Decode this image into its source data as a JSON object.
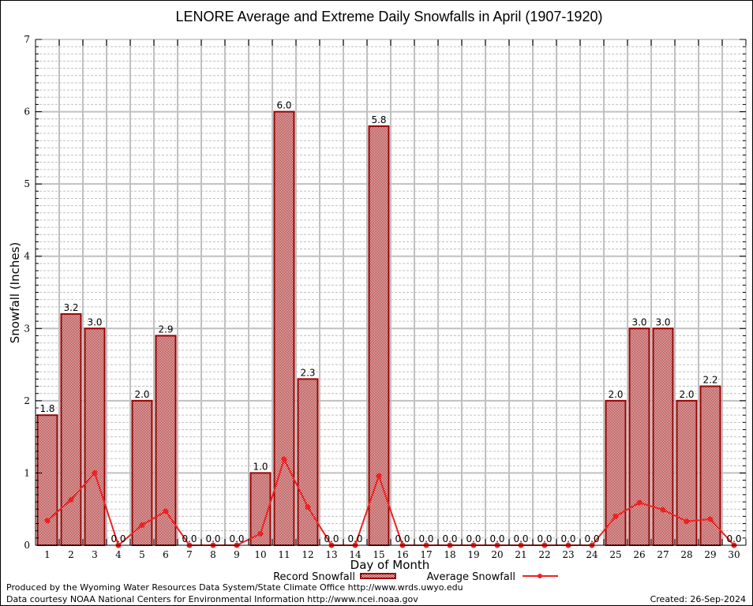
{
  "chart_data": {
    "type": "bar",
    "title": "LENORE Average and Extreme Daily Snowfalls in April (1907-1920)",
    "xlabel": "Day of Month",
    "ylabel": "Snowfall (Inches)",
    "ylim": [
      0,
      7
    ],
    "yticks": [
      "0",
      "1",
      "2",
      "3",
      "4",
      "5",
      "6",
      "7"
    ],
    "grid": true,
    "legend_position": "bottom-center",
    "categories": [
      "1",
      "2",
      "3",
      "4",
      "5",
      "6",
      "7",
      "8",
      "9",
      "10",
      "11",
      "12",
      "13",
      "14",
      "15",
      "16",
      "17",
      "18",
      "19",
      "20",
      "21",
      "22",
      "23",
      "24",
      "25",
      "26",
      "27",
      "28",
      "29",
      "30"
    ],
    "series": [
      {
        "name": "Record Snowfall",
        "type": "bar",
        "color": "#990000",
        "values": [
          1.8,
          3.2,
          3.0,
          0.0,
          2.0,
          2.9,
          0.0,
          0.0,
          0.0,
          1.0,
          6.0,
          2.3,
          0.0,
          0.0,
          5.8,
          0.0,
          0.0,
          0.0,
          0.0,
          0.0,
          0.0,
          0.0,
          0.0,
          0.0,
          2.0,
          3.0,
          3.0,
          2.0,
          2.2,
          0.0
        ],
        "labels": [
          "1.8",
          "3.2",
          "3.0",
          "0.0",
          "2.0",
          "2.9",
          "0.0",
          "0.0",
          "0.0",
          "1.0",
          "6.0",
          "2.3",
          "0.0",
          "0.0",
          "5.8",
          "0.0",
          "0.0",
          "0.0",
          "0.0",
          "0.0",
          "0.0",
          "0.0",
          "0.0",
          "0.0",
          "2.0",
          "3.0",
          "3.0",
          "2.0",
          "2.2",
          "0.0"
        ]
      },
      {
        "name": "Average Snowfall",
        "type": "line",
        "color": "#ee2222",
        "values": [
          0.34,
          0.63,
          1.0,
          0.0,
          0.28,
          0.47,
          0.0,
          0.0,
          0.0,
          0.16,
          1.19,
          0.53,
          0.0,
          0.0,
          0.96,
          0.0,
          0.0,
          0.0,
          0.0,
          0.0,
          0.0,
          0.0,
          0.0,
          0.0,
          0.4,
          0.59,
          0.49,
          0.33,
          0.36,
          0.0
        ]
      }
    ]
  },
  "footer": {
    "produced_by": "Produced by the Wyoming Water Resources Data System/State Climate Office http://www.wrds.uwyo.edu",
    "data_courtesy": "Data courtesy NOAA National Centers for Environmental Information http://www.ncei.noaa.gov",
    "created": "Created: 26-Sep-2024"
  },
  "colors": {
    "grid": "#c0c0c0",
    "bar_stroke": "#990000",
    "line": "#ee2222"
  }
}
